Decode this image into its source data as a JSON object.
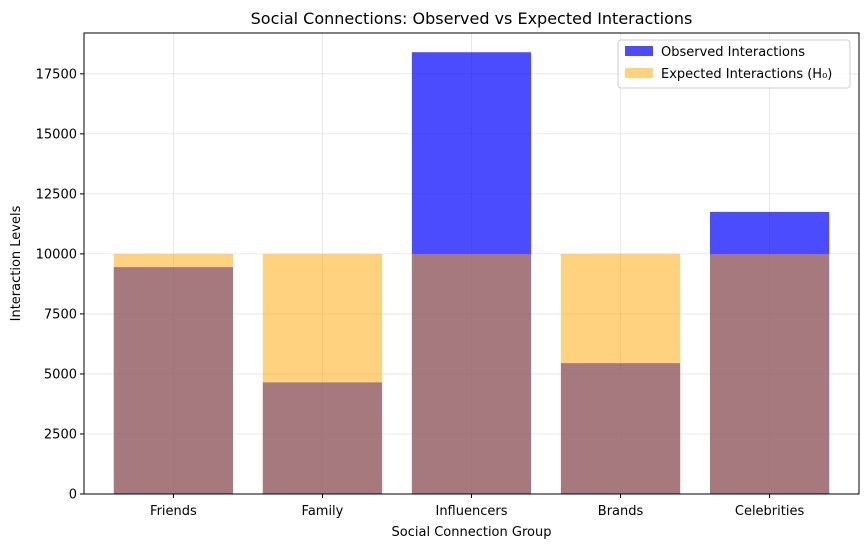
{
  "chart_data": {
    "type": "bar",
    "title": "Social Connections: Observed vs Expected Interactions",
    "xlabel": "Social Connection Group",
    "ylabel": "Interaction Levels",
    "categories": [
      "Friends",
      "Family",
      "Influencers",
      "Brands",
      "Celebrities"
    ],
    "series": [
      {
        "name": "Observed Interactions",
        "values": [
          9450,
          4650,
          18400,
          5450,
          11750
        ],
        "color": "#0000ff",
        "opacity": 0.7
      },
      {
        "name": "Expected Interactions (H₀)",
        "values": [
          10000,
          10000,
          10000,
          10000,
          10000
        ],
        "color": "#ffa500",
        "opacity": 0.5
      }
    ],
    "ylim": [
      0,
      19200
    ],
    "yticks": [
      0,
      2500,
      5000,
      7500,
      10000,
      12500,
      15000,
      17500
    ],
    "ytick_labels": [
      "0",
      "2500",
      "5000",
      "7500",
      "10000",
      "12500",
      "15000",
      "17500"
    ],
    "grid": true,
    "legend_position": "top-right"
  }
}
